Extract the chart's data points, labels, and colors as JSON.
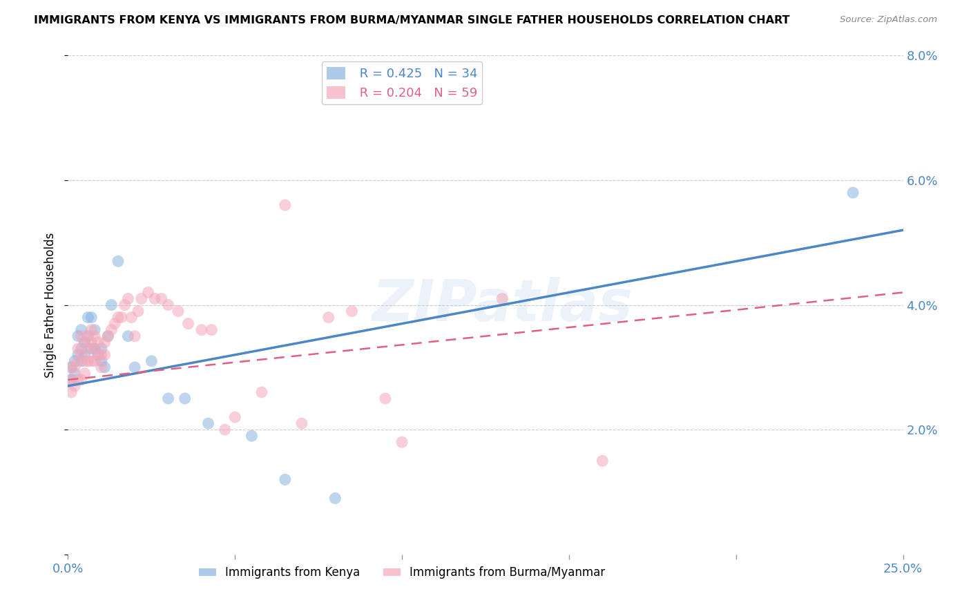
{
  "title": "IMMIGRANTS FROM KENYA VS IMMIGRANTS FROM BURMA/MYANMAR SINGLE FATHER HOUSEHOLDS CORRELATION CHART",
  "source": "Source: ZipAtlas.com",
  "ylabel_label": "Single Father Households",
  "xlim": [
    0.0,
    0.25
  ],
  "ylim": [
    0.0,
    0.08
  ],
  "xticks": [
    0.0,
    0.05,
    0.1,
    0.15,
    0.2,
    0.25
  ],
  "yticks": [
    0.0,
    0.02,
    0.04,
    0.06,
    0.08
  ],
  "kenya_color": "#8ab4e0",
  "burma_color": "#f4a7b9",
  "kenya_line_color": "#4a86c8",
  "burma_line_color": "#e06080",
  "kenya_R": 0.425,
  "kenya_N": 34,
  "burma_R": 0.204,
  "burma_N": 59,
  "legend_label_kenya": "Immigrants from Kenya",
  "legend_label_burma": "Immigrants from Burma/Myanmar",
  "watermark": "ZIPatlas",
  "kenya_line_start_y": 0.027,
  "kenya_line_end_y": 0.052,
  "burma_line_start_y": 0.028,
  "burma_line_end_y": 0.042,
  "kenya_x": [
    0.001,
    0.001,
    0.002,
    0.002,
    0.003,
    0.003,
    0.004,
    0.004,
    0.004,
    0.005,
    0.005,
    0.006,
    0.006,
    0.007,
    0.007,
    0.008,
    0.008,
    0.009,
    0.01,
    0.01,
    0.011,
    0.012,
    0.013,
    0.015,
    0.018,
    0.02,
    0.025,
    0.03,
    0.035,
    0.042,
    0.055,
    0.065,
    0.08,
    0.235
  ],
  "kenya_y": [
    0.028,
    0.03,
    0.029,
    0.031,
    0.032,
    0.035,
    0.031,
    0.033,
    0.036,
    0.032,
    0.034,
    0.035,
    0.038,
    0.033,
    0.038,
    0.033,
    0.036,
    0.032,
    0.031,
    0.033,
    0.03,
    0.035,
    0.04,
    0.047,
    0.035,
    0.03,
    0.031,
    0.025,
    0.025,
    0.021,
    0.019,
    0.012,
    0.009,
    0.058
  ],
  "burma_x": [
    0.001,
    0.001,
    0.001,
    0.002,
    0.002,
    0.003,
    0.003,
    0.003,
    0.004,
    0.004,
    0.004,
    0.005,
    0.005,
    0.005,
    0.006,
    0.006,
    0.006,
    0.007,
    0.007,
    0.007,
    0.008,
    0.008,
    0.008,
    0.009,
    0.009,
    0.01,
    0.01,
    0.011,
    0.011,
    0.012,
    0.013,
    0.014,
    0.015,
    0.016,
    0.017,
    0.018,
    0.019,
    0.02,
    0.021,
    0.022,
    0.024,
    0.026,
    0.028,
    0.03,
    0.033,
    0.036,
    0.04,
    0.043,
    0.047,
    0.05,
    0.058,
    0.065,
    0.07,
    0.078,
    0.085,
    0.095,
    0.1,
    0.13,
    0.16
  ],
  "burma_y": [
    0.026,
    0.028,
    0.03,
    0.027,
    0.03,
    0.028,
    0.031,
    0.033,
    0.028,
    0.032,
    0.035,
    0.029,
    0.031,
    0.034,
    0.031,
    0.033,
    0.035,
    0.031,
    0.034,
    0.036,
    0.031,
    0.033,
    0.035,
    0.032,
    0.034,
    0.03,
    0.032,
    0.032,
    0.034,
    0.035,
    0.036,
    0.037,
    0.038,
    0.038,
    0.04,
    0.041,
    0.038,
    0.035,
    0.039,
    0.041,
    0.042,
    0.041,
    0.041,
    0.04,
    0.039,
    0.037,
    0.036,
    0.036,
    0.02,
    0.022,
    0.026,
    0.056,
    0.021,
    0.038,
    0.039,
    0.025,
    0.018,
    0.041,
    0.015
  ]
}
